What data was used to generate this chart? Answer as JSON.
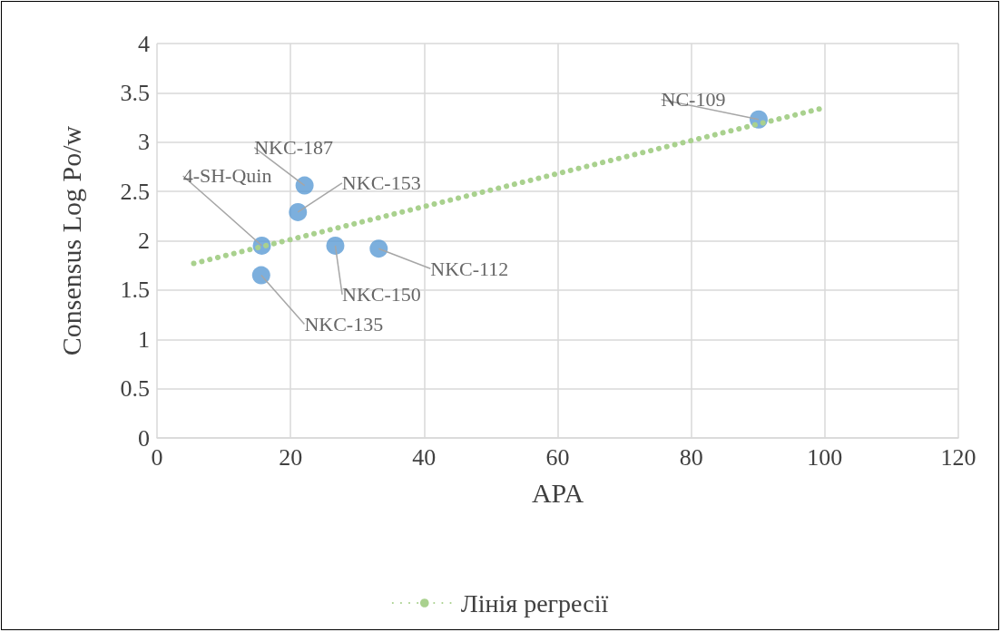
{
  "chart_data": {
    "type": "scatter",
    "xlabel": "APA",
    "ylabel": "Consensus Log Po/w",
    "series": [
      {
        "color": "#5b9bd5",
        "x": [
          22.1,
          21.1,
          15.7,
          15.6,
          26.7,
          33.2,
          90.1
        ],
        "values": [
          2.56,
          2.29,
          1.95,
          1.65,
          1.95,
          1.92,
          3.23
        ]
      },
      {
        "type": "line",
        "name": "Лінія регресії",
        "color": "#a9d18e",
        "line_style": "dotted",
        "marker": "none",
        "x": [
          5.5,
          100
        ],
        "values": [
          1.77,
          3.35
        ]
      }
    ],
    "annotations": [
      {
        "text": "NKC-187",
        "x": 22.1,
        "y": 2.56
      },
      {
        "text": "NKC-153",
        "x": 21.1,
        "y": 2.29
      },
      {
        "text": "4-SH-Quin",
        "x": 15.7,
        "y": 1.95
      },
      {
        "text": "NKC-135",
        "x": 15.6,
        "y": 1.65
      },
      {
        "text": "NKC-150",
        "x": 26.7,
        "y": 1.95
      },
      {
        "text": "NKC-112",
        "x": 33.2,
        "y": 1.92
      },
      {
        "text": "NC-109",
        "x": 90.1,
        "y": 3.23
      }
    ],
    "marker": "circle",
    "xlim": [
      0,
      120
    ],
    "xticks": [
      0,
      20,
      40,
      60,
      80,
      100,
      120
    ],
    "ylim": [
      0,
      4
    ],
    "yticks": [
      0,
      0.5,
      1,
      1.5,
      2,
      2.5,
      3,
      3.5,
      4
    ],
    "grid": true,
    "legend": "bottom"
  }
}
